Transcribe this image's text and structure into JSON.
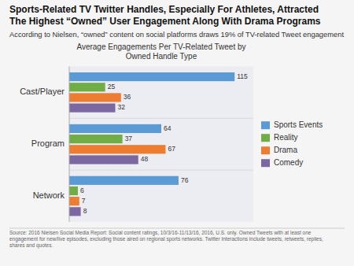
{
  "chart_data": {
    "type": "bar",
    "orientation": "horizontal",
    "title": "Sports-Related TV Twitter Handles, Especially For Athletes, Attracted\nThe Highest “Owned” User Engagement Along With Drama Programs",
    "subtitle": "According to Nielsen, “owned” content on social platforms draws 19% of TV-related Tweet engagement",
    "annotations": [
      "Average Engagements Per TV-Related Tweet by\nOwned Handle Type",
      "Source: 2016 Nielsen Social Media Report: Social content ratings, 10/3/16-11/13/16, 2016, U.S. only. Owned Tweets with at least one\nengagement for new/live episodes, excluding those aired on regional sports networks. Twitter Interactions include tweets, retweets, replies,\nshares and quotes."
    ],
    "categories": [
      "Cast/Player",
      "Program",
      "Network"
    ],
    "series": [
      {
        "name": "Sports Events",
        "color": "#5B9BD5",
        "values": [
          115,
          64,
          76
        ]
      },
      {
        "name": "Reality",
        "color": "#70AD47",
        "values": [
          25,
          37,
          6
        ]
      },
      {
        "name": "Drama",
        "color": "#ED7D31",
        "values": [
          36,
          67,
          7
        ]
      },
      {
        "name": "Comedy",
        "color": "#7B68A0",
        "values": [
          32,
          48,
          8
        ]
      }
    ],
    "xlim": [
      0,
      128
    ],
    "data_labels": true,
    "tick_labels": "y",
    "grid": false,
    "legend": "right"
  }
}
